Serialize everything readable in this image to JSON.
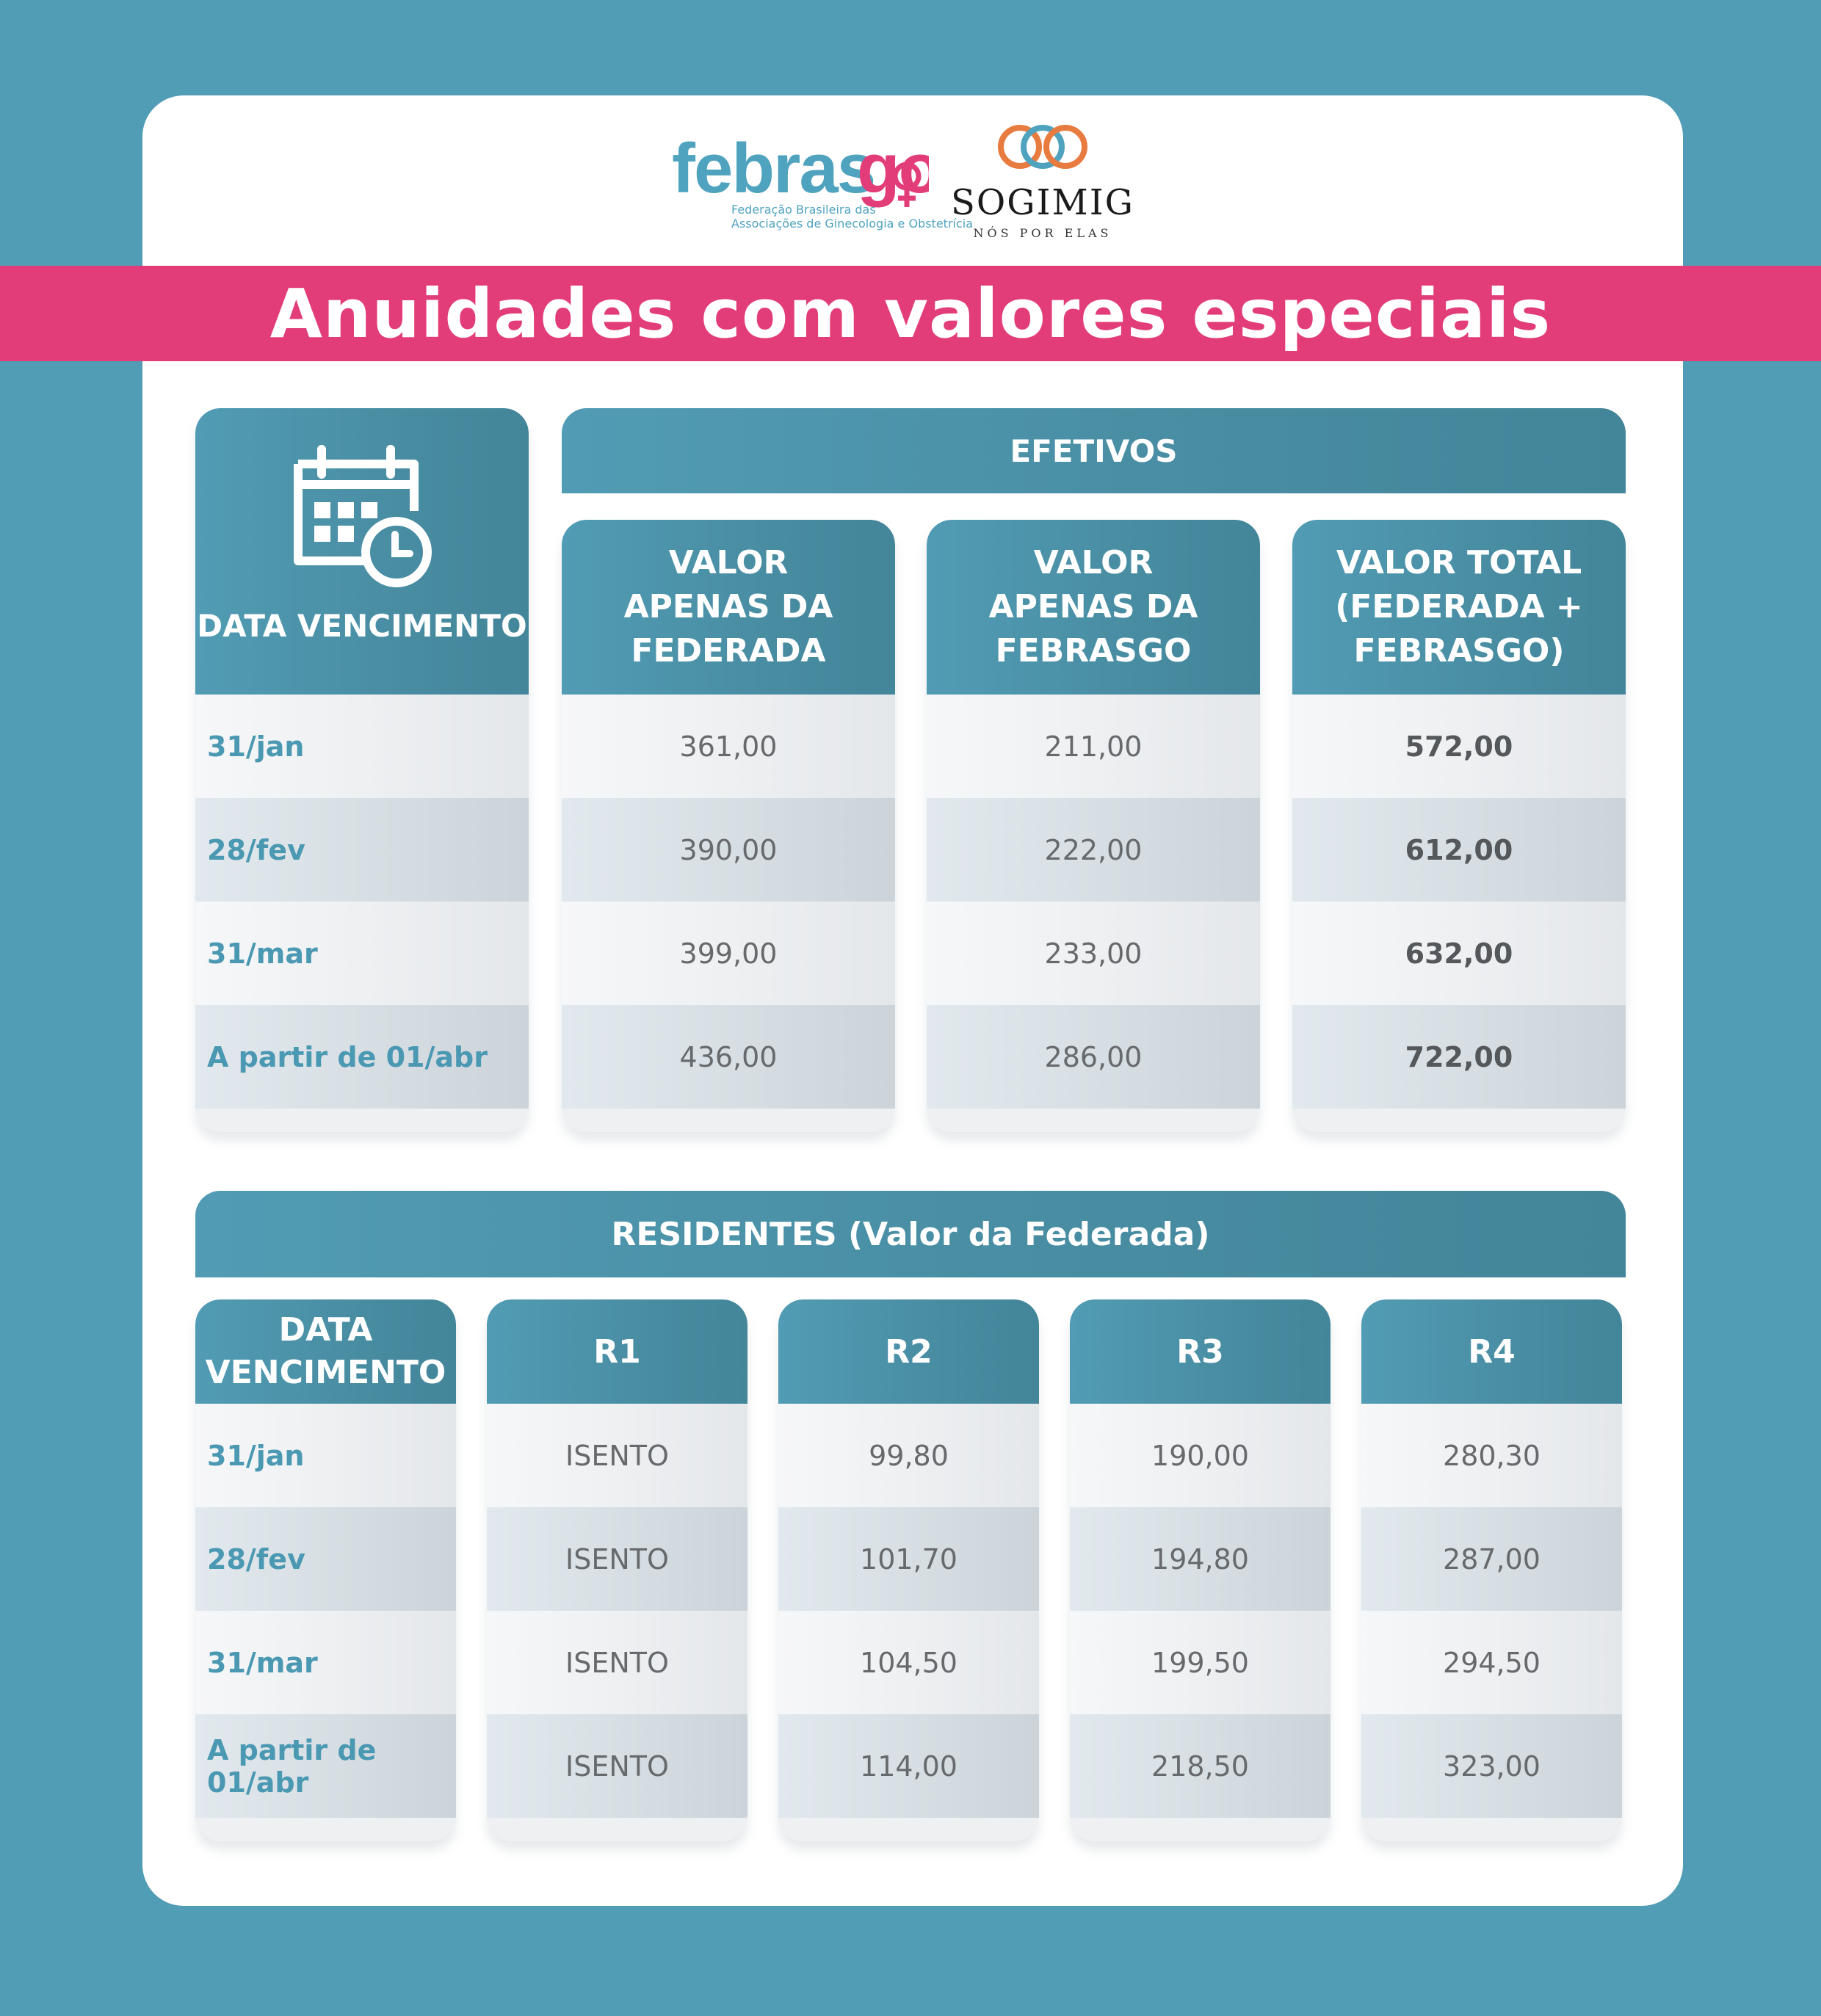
{
  "logos": {
    "febrasgo_text": "febrasgo",
    "febrasgo_subtitle_1": "Federação Brasileira das",
    "febrasgo_subtitle_2": "Associações de Ginecologia e Obstetrícia",
    "sogimig_text": "SOGIMIG",
    "sogimig_tagline": "NÓS POR ELAS"
  },
  "title": "Anuidades com valores especiais",
  "colors": {
    "background": "#519db6",
    "banner": "#e23d78",
    "header": "#4a8fa5",
    "date_text": "#4a98b2"
  },
  "efetivos": {
    "group_header": "EFETIVOS",
    "date_header": "DATA VENCIMENTO",
    "calendar_icon": "calendar-clock-icon",
    "col1_header": [
      "VALOR",
      "APENAS DA",
      "FEDERADA"
    ],
    "col2_header": [
      "VALOR",
      "APENAS DA",
      "FEBRASGO"
    ],
    "col3_header": [
      "VALOR TOTAL",
      "(FEDERADA +",
      "FEBRASGO)"
    ],
    "rows": [
      {
        "date": "31/jan",
        "federada": "361,00",
        "febrasgo": "211,00",
        "total": "572,00"
      },
      {
        "date": "28/fev",
        "federada": "390,00",
        "febrasgo": "222,00",
        "total": "612,00"
      },
      {
        "date": "31/mar",
        "federada": "399,00",
        "febrasgo": "233,00",
        "total": "632,00"
      },
      {
        "date": "A partir de 01/abr",
        "federada": "436,00",
        "febrasgo": "286,00",
        "total": "722,00"
      }
    ]
  },
  "residentes": {
    "group_header": "RESIDENTES (Valor da Federada)",
    "date_header": [
      "DATA",
      "VENCIMENTO"
    ],
    "r1_header": "R1",
    "r2_header": "R2",
    "r3_header": "R3",
    "r4_header": "R4",
    "rows": [
      {
        "date": "31/jan",
        "r1": "ISENTO",
        "r2": "99,80",
        "r3": "190,00",
        "r4": "280,30"
      },
      {
        "date": "28/fev",
        "r1": "ISENTO",
        "r2": "101,70",
        "r3": "194,80",
        "r4": "287,00"
      },
      {
        "date": "31/mar",
        "r1": "ISENTO",
        "r2": "104,50",
        "r3": "199,50",
        "r4": "294,50"
      },
      {
        "date": "A partir de 01/abr",
        "r1": "ISENTO",
        "r2": "114,00",
        "r3": "218,50",
        "r4": "323,00"
      }
    ]
  }
}
